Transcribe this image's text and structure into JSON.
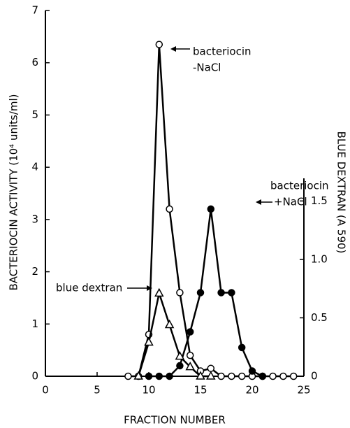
{
  "chart_data": {
    "type": "line",
    "x_label": "FRACTION NUMBER",
    "y_label": "BACTERIOCIN ACTIVITY (10⁴ units/ml)",
    "y2_label": "BLUE DEXTRAN (A 590)",
    "xlim": [
      0,
      25
    ],
    "xticks": [
      0,
      5,
      10,
      15,
      20,
      25
    ],
    "ylim": [
      0,
      7
    ],
    "yticks": [
      0,
      1,
      2,
      3,
      4,
      5,
      6,
      7
    ],
    "y2lim": [
      0,
      3.13
    ],
    "y2ticks": [
      0,
      0.5,
      {
        "value": 1,
        "label": "1.0"
      },
      1.5
    ],
    "series": [
      {
        "color": "#000000",
        "marker": "open-circle",
        "x": [
          8,
          9,
          10,
          11,
          12,
          13,
          14,
          15,
          16,
          17,
          18,
          19,
          20,
          21,
          22,
          23,
          24
        ],
        "values": [
          0,
          0,
          0.8,
          6.35,
          3.2,
          1.6,
          0.4,
          0.1,
          0.15,
          0,
          0,
          0,
          0,
          0,
          0,
          0,
          0
        ]
      },
      {
        "color": "#000000",
        "marker": "filled-circle",
        "x": [
          10,
          11,
          12,
          13,
          14,
          15,
          16,
          17,
          18,
          19,
          20,
          21
        ],
        "values": [
          0,
          0,
          0,
          0.2,
          0.85,
          1.6,
          3.2,
          1.6,
          1.6,
          0.55,
          0.1,
          0
        ]
      },
      {
        "color": "#000000",
        "marker": "open-triangle",
        "axis": "y2",
        "x": [
          9,
          10,
          11,
          12,
          13,
          14,
          15,
          16
        ],
        "values": [
          0,
          0.29,
          0.71,
          0.44,
          0.17,
          0.08,
          0,
          0
        ]
      }
    ],
    "annotations": [
      "bacteriocin",
      "-NaCl",
      "bacteriocin",
      "+NaCl",
      "blue dextran"
    ]
  }
}
